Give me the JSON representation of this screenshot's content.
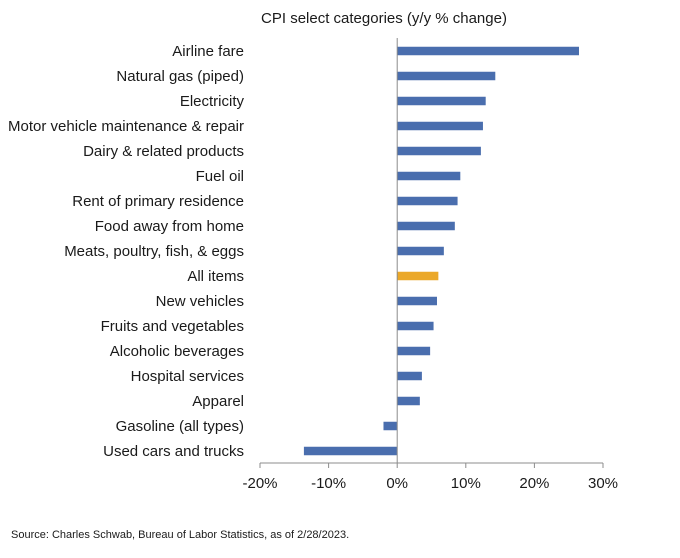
{
  "chart_data": {
    "type": "bar",
    "orientation": "horizontal",
    "title": "CPI select categories (y/y % change)",
    "categories": [
      "Airline fare",
      "Natural gas (piped)",
      "Electricity",
      "Motor vehicle maintenance & repair",
      "Dairy & related products",
      "Fuel oil",
      "Rent of primary residence",
      "Food away from home",
      "Meats, poultry, fish, & eggs",
      "All items",
      "New vehicles",
      "Fruits and vegetables",
      "Alcoholic beverages",
      "Hospital services",
      "Apparel",
      "Gasoline (all types)",
      "Used cars and trucks"
    ],
    "values": [
      26.5,
      14.3,
      12.9,
      12.5,
      12.2,
      9.2,
      8.8,
      8.4,
      6.8,
      6.0,
      5.8,
      5.3,
      4.8,
      3.6,
      3.3,
      -2.0,
      -13.6
    ],
    "highlight_category": "All items",
    "colors": {
      "bar": "#4a6eae",
      "highlight": "#eba829",
      "axis": "#8c8c8c"
    },
    "xlabel": "",
    "ylabel": "",
    "xlim": [
      -20,
      30
    ],
    "xticks": [
      -20,
      -10,
      0,
      10,
      20,
      30
    ],
    "xtick_labels": [
      "-20%",
      "-10%",
      "0%",
      "10%",
      "20%",
      "30%"
    ],
    "grid": false,
    "legend": "none"
  },
  "source_note": "Source: Charles Schwab, Bureau of Labor Statistics, as of 2/28/2023."
}
